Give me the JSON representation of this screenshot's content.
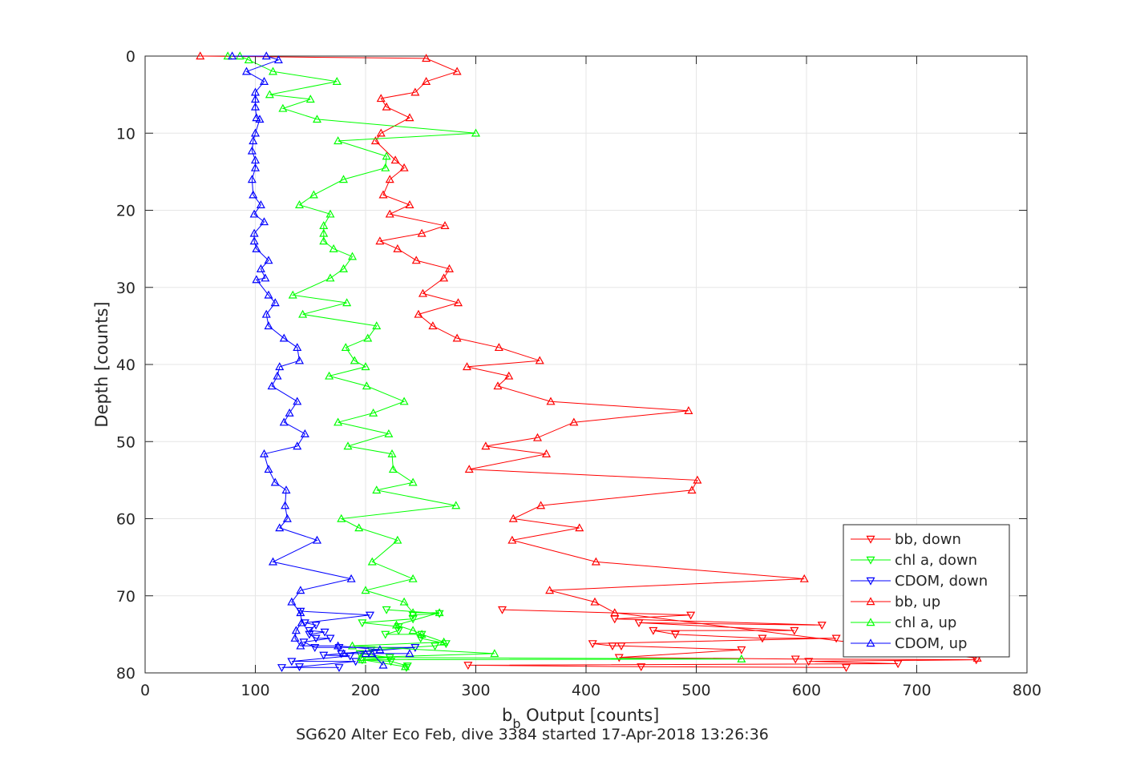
{
  "chart_data": {
    "type": "line",
    "title": "SG620 Alter Eco Feb, dive 3384 started 17-Apr-2018 13:26:36",
    "xlabel_main": "b",
    "xlabel_sub": "b",
    "xlabel_rest": " Output [counts]",
    "ylabel": "Depth [counts]",
    "xlim": [
      0,
      800
    ],
    "ylim": [
      0,
      80
    ],
    "y_reversed": true,
    "grid": true,
    "legend_position": "bottom-right",
    "xticks": [
      0,
      100,
      200,
      300,
      400,
      500,
      600,
      700,
      800
    ],
    "yticks": [
      0,
      10,
      20,
      30,
      40,
      50,
      60,
      70,
      80
    ],
    "series": [
      {
        "name": "bb, down",
        "color": "#ff0000",
        "marker": "triangle-down",
        "points": [
          [
            324,
            71.8
          ],
          [
            495,
            72.5
          ],
          [
            426,
            73
          ],
          [
            614,
            73.8
          ],
          [
            448,
            73.5
          ],
          [
            589,
            74.5
          ],
          [
            461,
            74.5
          ],
          [
            481,
            75
          ],
          [
            560,
            75.5
          ],
          [
            627,
            75.5
          ],
          [
            406,
            76.2
          ],
          [
            424,
            76.5
          ],
          [
            432,
            76.5
          ],
          [
            541,
            77
          ],
          [
            430,
            78
          ],
          [
            590,
            78.2
          ],
          [
            754,
            78.3
          ],
          [
            602,
            78.5
          ],
          [
            683,
            78.8
          ],
          [
            293,
            79
          ],
          [
            450,
            79.2
          ],
          [
            636,
            79.3
          ]
        ]
      },
      {
        "name": "chl a, down",
        "color": "#00ff00",
        "marker": "triangle-down",
        "points": [
          [
            219,
            71.8
          ],
          [
            267,
            72.3
          ],
          [
            243,
            72.5
          ],
          [
            243,
            73
          ],
          [
            197,
            73.5
          ],
          [
            230,
            74
          ],
          [
            230,
            74.5
          ],
          [
            218,
            75
          ],
          [
            251,
            75
          ],
          [
            250,
            75.5
          ],
          [
            273,
            76.2
          ],
          [
            263,
            76.5
          ],
          [
            205,
            77
          ],
          [
            195,
            77.5
          ],
          [
            222,
            78
          ],
          [
            197,
            78.3
          ],
          [
            223,
            78.5
          ],
          [
            238,
            79.1
          ],
          [
            237,
            79.3
          ]
        ]
      },
      {
        "name": "CDOM, down",
        "color": "#0000ff",
        "marker": "triangle-down",
        "points": [
          [
            141,
            72
          ],
          [
            204,
            72.5
          ],
          [
            145,
            73.5
          ],
          [
            155,
            73.8
          ],
          [
            149,
            74.5
          ],
          [
            163,
            74.7
          ],
          [
            149,
            75
          ],
          [
            155,
            75.5
          ],
          [
            168,
            75.5
          ],
          [
            144,
            76
          ],
          [
            154,
            76.7
          ],
          [
            176,
            76.7
          ],
          [
            245,
            76.7
          ],
          [
            178,
            77.5
          ],
          [
            162,
            77.7
          ],
          [
            186,
            77.8
          ],
          [
            133,
            78.5
          ],
          [
            191,
            78.5
          ],
          [
            140,
            79.2
          ],
          [
            124,
            79.3
          ],
          [
            176,
            79.3
          ]
        ]
      },
      {
        "name": "bb, up",
        "color": "#ff0000",
        "marker": "triangle-up",
        "points": [
          [
            50,
            0
          ],
          [
            255,
            0.3
          ],
          [
            283,
            2
          ],
          [
            255,
            3.3
          ],
          [
            245,
            4.7
          ],
          [
            214,
            5.5
          ],
          [
            219,
            6.6
          ],
          [
            240,
            8
          ],
          [
            214,
            10
          ],
          [
            209,
            11
          ],
          [
            227,
            13.5
          ],
          [
            235,
            14.5
          ],
          [
            222,
            16
          ],
          [
            216,
            18
          ],
          [
            240,
            19.3
          ],
          [
            222,
            20.5
          ],
          [
            272,
            22
          ],
          [
            251,
            23
          ],
          [
            213,
            24
          ],
          [
            229,
            25
          ],
          [
            246,
            26.5
          ],
          [
            276,
            27.6
          ],
          [
            271,
            28.8
          ],
          [
            252,
            30.8
          ],
          [
            284,
            32
          ],
          [
            248,
            33.5
          ],
          [
            261,
            35
          ],
          [
            283,
            36.6
          ],
          [
            321,
            37.8
          ],
          [
            358,
            39.5
          ],
          [
            292,
            40.3
          ],
          [
            330,
            41.5
          ],
          [
            320,
            42.8
          ],
          [
            368,
            44.8
          ],
          [
            493,
            46
          ],
          [
            389,
            47.5
          ],
          [
            356,
            49.5
          ],
          [
            309,
            50.6
          ],
          [
            364,
            51.6
          ],
          [
            294,
            53.6
          ],
          [
            501,
            55
          ],
          [
            496,
            56.3
          ],
          [
            359,
            58.3
          ],
          [
            334,
            60
          ],
          [
            394,
            61.2
          ],
          [
            333,
            62.8
          ],
          [
            409,
            65.6
          ],
          [
            598,
            67.8
          ],
          [
            367,
            69.3
          ],
          [
            408,
            70.8
          ],
          [
            426,
            72.2
          ],
          [
            755,
            78.1
          ]
        ]
      },
      {
        "name": "chl a, up",
        "color": "#00ff00",
        "marker": "triangle-up",
        "points": [
          [
            75,
            0
          ],
          [
            86,
            0
          ],
          [
            94,
            0.5
          ],
          [
            116,
            2
          ],
          [
            174,
            3.3
          ],
          [
            113,
            5
          ],
          [
            150,
            5.6
          ],
          [
            125,
            6.8
          ],
          [
            156,
            8.2
          ],
          [
            300,
            10
          ],
          [
            175,
            11
          ],
          [
            219,
            13
          ],
          [
            218,
            14.5
          ],
          [
            180,
            16
          ],
          [
            153,
            18
          ],
          [
            140,
            19.3
          ],
          [
            168,
            20.5
          ],
          [
            162,
            22
          ],
          [
            162,
            23
          ],
          [
            162,
            24
          ],
          [
            171,
            25
          ],
          [
            188,
            26
          ],
          [
            180,
            27.6
          ],
          [
            168,
            28.8
          ],
          [
            134,
            31
          ],
          [
            183,
            32
          ],
          [
            143,
            33.5
          ],
          [
            210,
            35
          ],
          [
            202,
            36.6
          ],
          [
            182,
            37.8
          ],
          [
            190,
            39.5
          ],
          [
            200,
            40.3
          ],
          [
            167,
            41.5
          ],
          [
            201,
            42.8
          ],
          [
            235,
            44.8
          ],
          [
            207,
            46.3
          ],
          [
            175,
            47.5
          ],
          [
            221,
            49
          ],
          [
            184,
            50.6
          ],
          [
            224,
            51.6
          ],
          [
            225,
            53.6
          ],
          [
            243,
            55.3
          ],
          [
            210,
            56.3
          ],
          [
            282,
            58.3
          ],
          [
            178,
            60
          ],
          [
            194,
            61.2
          ],
          [
            229,
            62.8
          ],
          [
            206,
            65.6
          ],
          [
            243,
            67.8
          ],
          [
            200,
            69.3
          ],
          [
            235,
            70.8
          ],
          [
            243,
            72.2
          ],
          [
            267,
            72.2
          ],
          [
            228,
            73.8
          ],
          [
            243,
            74.5
          ],
          [
            251,
            75
          ],
          [
            271,
            76
          ],
          [
            188,
            76.5
          ],
          [
            317,
            77.5
          ],
          [
            196,
            78
          ],
          [
            541,
            78.2
          ],
          [
            197,
            78.3
          ],
          [
            236,
            79.2
          ]
        ]
      },
      {
        "name": "CDOM, up",
        "color": "#0000ff",
        "marker": "triangle-up",
        "points": [
          [
            79,
            0
          ],
          [
            110,
            0
          ],
          [
            121,
            0.5
          ],
          [
            92,
            2
          ],
          [
            108,
            3.3
          ],
          [
            100,
            4.7
          ],
          [
            100,
            5.6
          ],
          [
            100,
            6.6
          ],
          [
            101,
            8
          ],
          [
            104,
            8.2
          ],
          [
            100,
            10
          ],
          [
            98,
            11
          ],
          [
            97,
            12.3
          ],
          [
            100,
            13.5
          ],
          [
            100,
            14.5
          ],
          [
            97,
            16
          ],
          [
            98,
            18
          ],
          [
            105,
            19.3
          ],
          [
            99,
            20.5
          ],
          [
            108,
            21.5
          ],
          [
            99,
            23
          ],
          [
            99,
            24
          ],
          [
            101,
            25
          ],
          [
            112,
            26.5
          ],
          [
            105,
            27.6
          ],
          [
            109,
            28.8
          ],
          [
            101,
            29
          ],
          [
            112,
            31
          ],
          [
            118,
            32
          ],
          [
            110,
            33.5
          ],
          [
            112,
            35
          ],
          [
            126,
            36.6
          ],
          [
            138,
            37.8
          ],
          [
            140,
            39.5
          ],
          [
            122,
            40.3
          ],
          [
            120,
            41.5
          ],
          [
            115,
            42.8
          ],
          [
            138,
            44.8
          ],
          [
            131,
            46.3
          ],
          [
            126,
            47.5
          ],
          [
            145,
            49
          ],
          [
            138,
            50.6
          ],
          [
            108,
            51.6
          ],
          [
            112,
            53.6
          ],
          [
            118,
            55.3
          ],
          [
            128,
            56.3
          ],
          [
            127,
            58.3
          ],
          [
            129,
            60
          ],
          [
            122,
            61.2
          ],
          [
            156,
            62.8
          ],
          [
            116,
            65.6
          ],
          [
            187,
            67.8
          ],
          [
            141,
            69.3
          ],
          [
            133,
            70.8
          ],
          [
            141,
            72.2
          ],
          [
            142,
            73.5
          ],
          [
            137,
            74.5
          ],
          [
            136,
            75.5
          ],
          [
            141,
            76.5
          ],
          [
            175,
            76.5
          ],
          [
            213,
            77
          ],
          [
            180,
            77.5
          ],
          [
            200,
            77.5
          ],
          [
            240,
            77.5
          ],
          [
            206,
            77.5
          ],
          [
            216,
            79
          ]
        ]
      }
    ]
  }
}
